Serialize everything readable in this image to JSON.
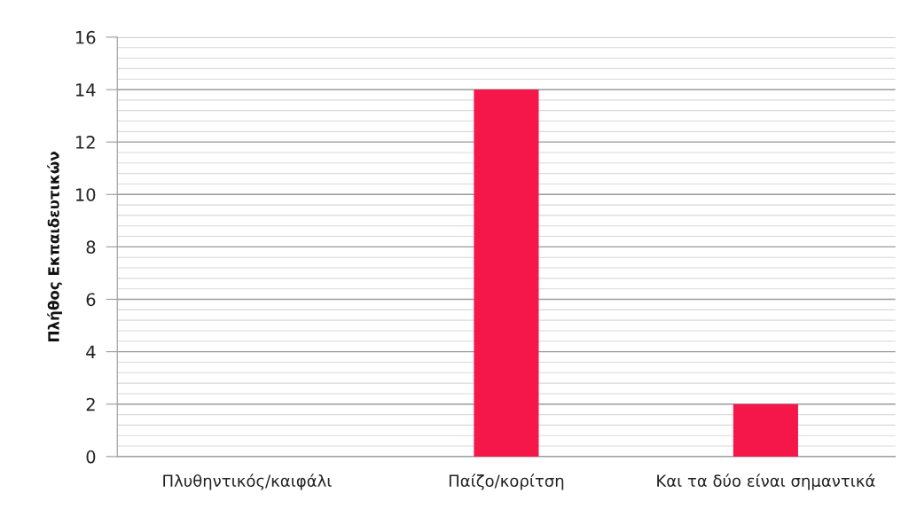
{
  "chart_data": {
    "type": "bar",
    "ylabel": "Πλήθος Εκπαιδευτικών",
    "categories": [
      "Πλυθηντικός/καιφάλι",
      "Παίζο/κορίτση",
      "Και τα δύο είναι σημαντικά"
    ],
    "values": [
      0,
      14,
      2
    ],
    "color": "#f5174a",
    "ylim": [
      0,
      16
    ],
    "yticks": [
      0,
      {
        "value": 0.4,
        "label": null
      },
      {
        "value": 0.8,
        "label": null
      },
      {
        "value": 1.2,
        "label": null
      },
      {
        "value": 1.6,
        "label": null
      },
      2,
      {
        "value": 2.4,
        "label": null
      },
      {
        "value": 2.8,
        "label": null
      },
      {
        "value": 3.2,
        "label": null
      },
      {
        "value": 3.6,
        "label": null
      },
      4,
      {
        "value": 4.4,
        "label": null
      },
      {
        "value": 4.8,
        "label": null
      },
      {
        "value": 5.2,
        "label": null
      },
      {
        "value": 5.6,
        "label": null
      },
      6,
      {
        "value": 6.4,
        "label": null
      },
      {
        "value": 6.8,
        "label": null
      },
      {
        "value": 7.2,
        "label": null
      },
      {
        "value": 7.6,
        "label": null
      },
      8,
      {
        "value": 8.4,
        "label": null
      },
      {
        "value": 8.8,
        "label": null
      },
      {
        "value": 9.2,
        "label": null
      },
      {
        "value": 9.6,
        "label": null
      },
      10,
      {
        "value": 10.4,
        "label": null
      },
      {
        "value": 10.8,
        "label": null
      },
      {
        "value": 11.2,
        "label": null
      },
      {
        "value": 11.6,
        "label": null
      },
      12,
      {
        "value": 12.4,
        "label": null
      },
      {
        "value": 12.8,
        "label": null
      },
      {
        "value": 13.2,
        "label": null
      },
      {
        "value": 13.6,
        "label": null
      },
      14,
      {
        "value": 14.4,
        "label": null
      },
      {
        "value": 14.8,
        "label": null
      },
      {
        "value": 15.2,
        "label": null
      },
      {
        "value": 15.6,
        "label": null
      },
      16
    ],
    "grid": "y"
  }
}
